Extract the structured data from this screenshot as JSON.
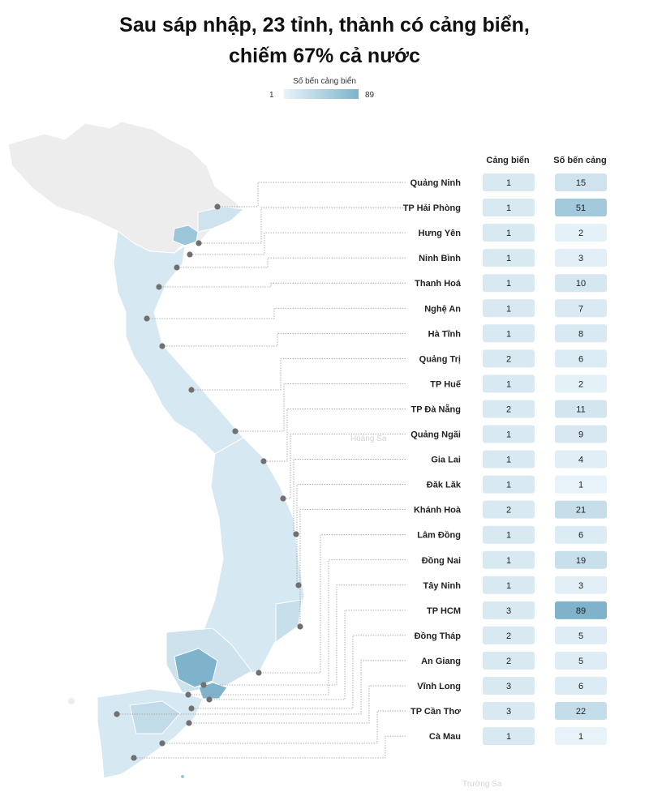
{
  "title_lines": [
    "Sau sáp nhập, 23 tỉnh, thành có cảng biển,",
    "chiếm 67% cả nước"
  ],
  "legend": {
    "title": "Số bến cảng biển",
    "min": "1",
    "max": "89"
  },
  "map_labels": {
    "paracel": "Hoàng Sa",
    "spratly": "Trường Sa"
  },
  "colors": {
    "scale_low": "#e8f3f9",
    "scale_high": "#7fb3cc",
    "no_port": "#ededed",
    "border": "#ffffff",
    "leader": "#999999",
    "marker": "#6f6f6f"
  },
  "chart_data": {
    "type": "table",
    "columns": [
      "Cảng biển",
      "Số bến cảng"
    ],
    "rows": [
      {
        "province": "Quảng Ninh",
        "ports": 1,
        "berths": 15
      },
      {
        "province": "TP Hải Phòng",
        "ports": 1,
        "berths": 51
      },
      {
        "province": "Hưng Yên",
        "ports": 1,
        "berths": 2
      },
      {
        "province": "Ninh Bình",
        "ports": 1,
        "berths": 3
      },
      {
        "province": "Thanh Hoá",
        "ports": 1,
        "berths": 10
      },
      {
        "province": "Nghệ An",
        "ports": 1,
        "berths": 7
      },
      {
        "province": "Hà Tĩnh",
        "ports": 1,
        "berths": 8
      },
      {
        "province": "Quảng Trị",
        "ports": 2,
        "berths": 6
      },
      {
        "province": "TP Huế",
        "ports": 1,
        "berths": 2
      },
      {
        "province": "TP Đà Nẵng",
        "ports": 2,
        "berths": 11
      },
      {
        "province": "Quảng Ngãi",
        "ports": 1,
        "berths": 9
      },
      {
        "province": "Gia Lai",
        "ports": 1,
        "berths": 4
      },
      {
        "province": "Đăk Lăk",
        "ports": 1,
        "berths": 1
      },
      {
        "province": "Khánh Hoà",
        "ports": 2,
        "berths": 21
      },
      {
        "province": "Lâm Đồng",
        "ports": 1,
        "berths": 6
      },
      {
        "province": "Đồng Nai",
        "ports": 1,
        "berths": 19
      },
      {
        "province": "Tây Ninh",
        "ports": 1,
        "berths": 3
      },
      {
        "province": "TP HCM",
        "ports": 3,
        "berths": 89
      },
      {
        "province": "Đồng Tháp",
        "ports": 2,
        "berths": 5
      },
      {
        "province": "An Giang",
        "ports": 2,
        "berths": 5
      },
      {
        "province": "Vĩnh Long",
        "ports": 3,
        "berths": 6
      },
      {
        "province": "TP Cần Thơ",
        "ports": 3,
        "berths": 22
      },
      {
        "province": "Cà Mau",
        "ports": 1,
        "berths": 1
      }
    ],
    "berth_range": [
      1,
      89
    ]
  }
}
